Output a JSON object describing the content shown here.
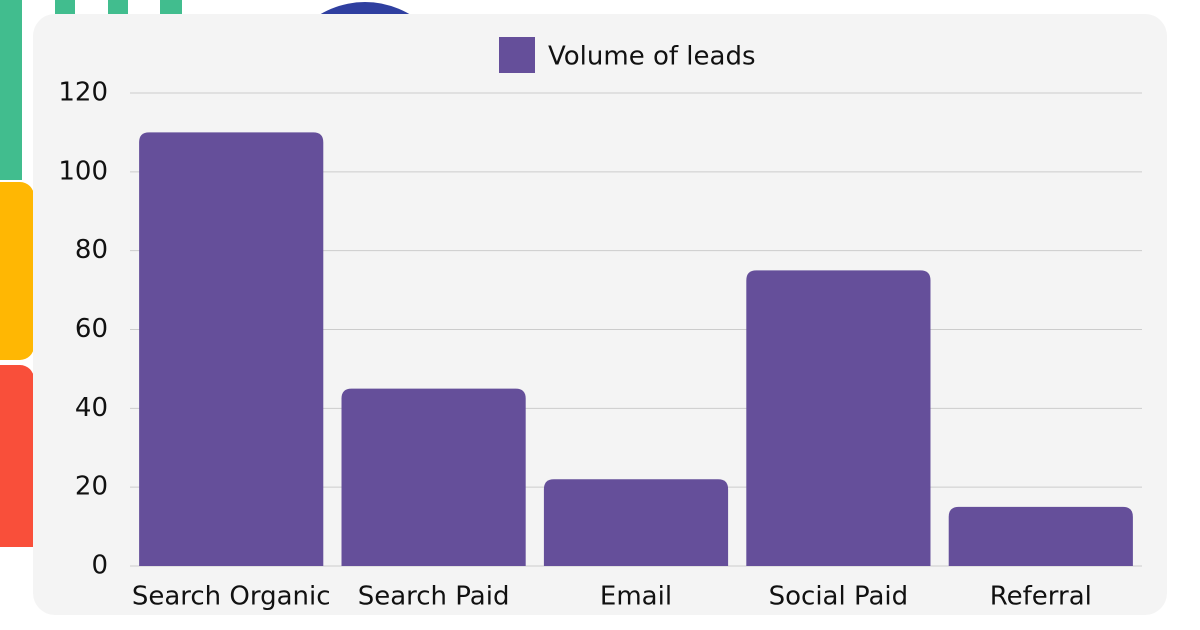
{
  "chart_data": {
    "type": "bar",
    "legend": "Volume of leads",
    "categories": [
      "Search Organic",
      "Search Paid",
      "Email",
      "Social Paid",
      "Referral"
    ],
    "values": [
      110,
      45,
      22,
      75,
      15
    ],
    "color": "#654f9a",
    "ylim": [
      0,
      120
    ],
    "yticks": [
      0,
      20,
      40,
      60,
      80,
      100,
      120
    ],
    "grid": true
  }
}
